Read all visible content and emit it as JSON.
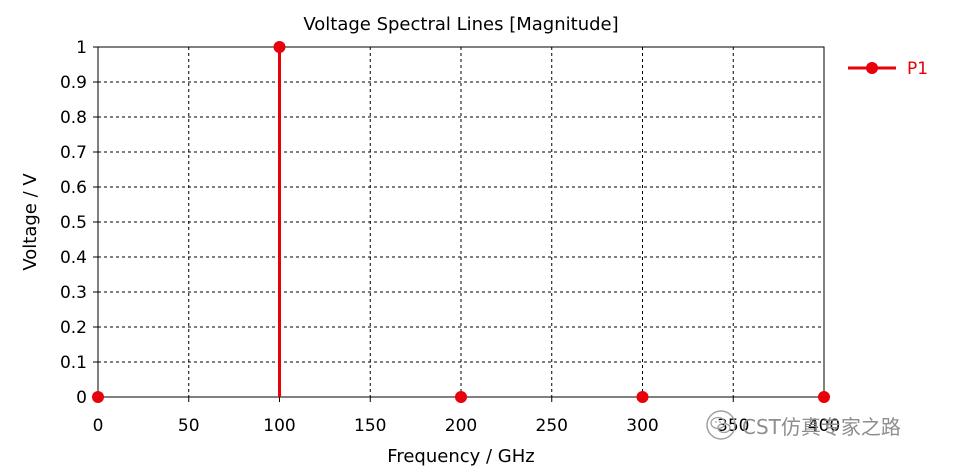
{
  "chart_data": {
    "type": "stem",
    "title": "Voltage Spectral Lines [Magnitude]",
    "xlabel": "Frequency / GHz",
    "ylabel": "Voltage / V",
    "xlim": [
      0,
      400
    ],
    "ylim": [
      0,
      1
    ],
    "xticks": [
      "0",
      "50",
      "100",
      "150",
      "200",
      "250",
      "300",
      "350",
      "400"
    ],
    "yticks": [
      "0",
      "0.1",
      "0.2",
      "0.3",
      "0.4",
      "0.5",
      "0.6",
      "0.7",
      "0.8",
      "0.9",
      "1"
    ],
    "grid": true,
    "legend_position": "right",
    "series": [
      {
        "name": "P1",
        "color": "#e8000b",
        "x": [
          0,
          100,
          200,
          300,
          400
        ],
        "y": [
          0,
          1,
          0,
          0,
          0
        ]
      }
    ]
  },
  "watermark": {
    "text": "CST仿真专家之路",
    "icon": "wechat-logo-icon"
  }
}
